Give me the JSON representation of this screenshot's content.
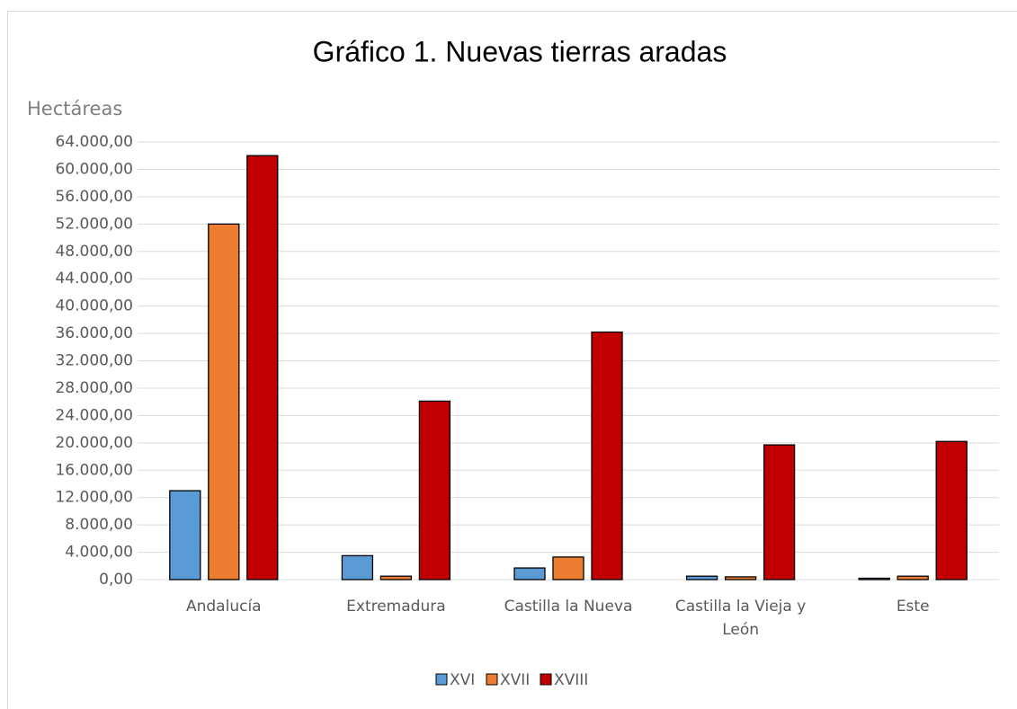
{
  "chart_data": {
    "type": "bar",
    "title": "Gráfico 1. Nuevas tierras aradas",
    "y_label": "Hectáreas",
    "categories": [
      "Andalucía",
      "Extremadura",
      "Castilla la Nueva",
      "Castilla la Vieja y León",
      "Este"
    ],
    "series": [
      {
        "name": "XVI",
        "color": "#5b9bd5",
        "values": [
          13000,
          3500,
          1700,
          500,
          200
        ]
      },
      {
        "name": "XVII",
        "color": "#ed7d31",
        "values": [
          52000,
          500,
          3300,
          400,
          500
        ]
      },
      {
        "name": "XVIII",
        "color": "#c00000",
        "values": [
          62000,
          26100,
          36200,
          19700,
          20200
        ]
      }
    ],
    "ylim": [
      0,
      64000
    ],
    "yticks": [
      {
        "value": 0,
        "label": "0,00"
      },
      {
        "value": 4000,
        "label": "4.000,00"
      },
      {
        "value": 8000,
        "label": "8.000,00"
      },
      {
        "value": 12000,
        "label": "12.000,00"
      },
      {
        "value": 16000,
        "label": "16.000,00"
      },
      {
        "value": 20000,
        "label": "20.000,00"
      },
      {
        "value": 24000,
        "label": "24.000,00"
      },
      {
        "value": 28000,
        "label": "28.000,00"
      },
      {
        "value": 32000,
        "label": "32.000,00"
      },
      {
        "value": 36000,
        "label": "36.000,00"
      },
      {
        "value": 40000,
        "label": "40.000,00"
      },
      {
        "value": 44000,
        "label": "44.000,00"
      },
      {
        "value": 48000,
        "label": "48.000,00"
      },
      {
        "value": 52000,
        "label": "52.000,00"
      },
      {
        "value": 56000,
        "label": "56.000,00"
      },
      {
        "value": 60000,
        "label": "60.000,00"
      },
      {
        "value": 64000,
        "label": "64.000,00"
      }
    ],
    "grid": true,
    "legend": "bottom"
  }
}
